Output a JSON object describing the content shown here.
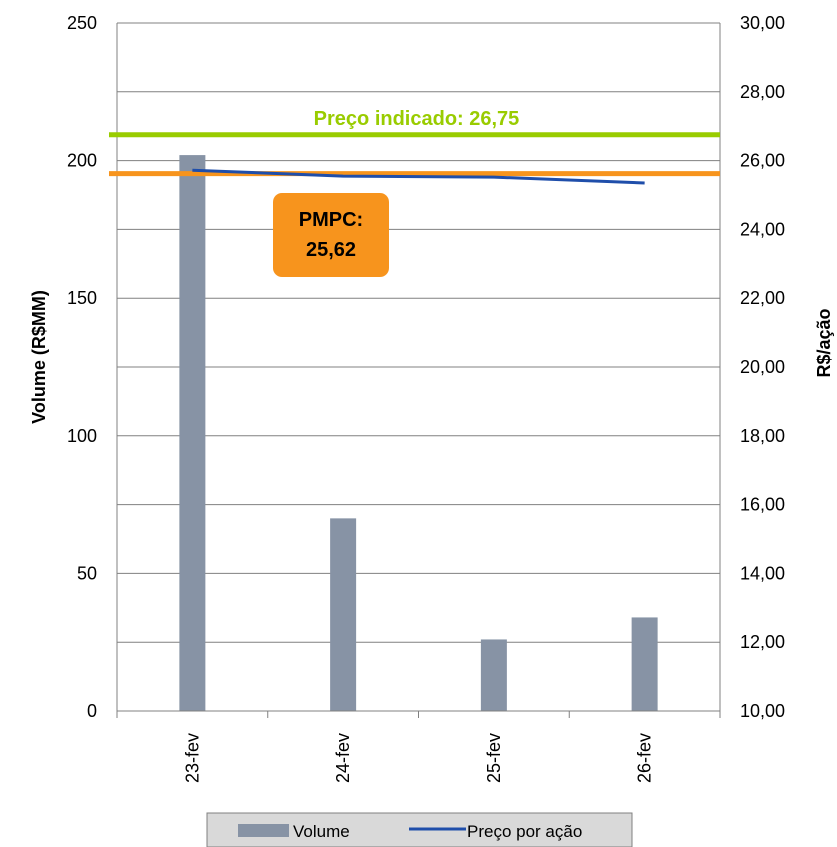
{
  "chart_data": {
    "type": "bar",
    "categories": [
      "23-fev",
      "24-fev",
      "25-fev",
      "26-fev"
    ],
    "series": [
      {
        "name": "Volume",
        "kind": "bar",
        "axis": "left",
        "values": [
          202,
          70,
          26,
          34
        ]
      },
      {
        "name": "Preço por ação",
        "kind": "line",
        "axis": "right",
        "values": [
          25.72,
          25.55,
          25.52,
          25.35
        ]
      }
    ],
    "y_left": {
      "label": "Volume (R$MM)",
      "ylim": [
        0,
        250
      ],
      "ticks": [
        "0",
        "50",
        "100",
        "150",
        "200",
        "250"
      ]
    },
    "y_right": {
      "label": "R$/ação",
      "ylim": [
        10,
        30
      ],
      "ticks": [
        "10,00",
        "12,00",
        "14,00",
        "16,00",
        "18,00",
        "20,00",
        "22,00",
        "24,00",
        "26,00",
        "28,00",
        "30,00"
      ]
    },
    "reference_lines": [
      {
        "label": "Preço indicado: 26,75",
        "value": 26.75,
        "axis": "right",
        "color": "#99CC00"
      },
      {
        "label": "PMPC:\n25,62",
        "value": 25.62,
        "axis": "right",
        "color": "#F7941D"
      }
    ],
    "grid": true,
    "legend": {
      "position": "bottom",
      "entries": [
        "Volume",
        "Preço por ação"
      ]
    },
    "colors": {
      "bar": "#8793A5",
      "line": "#1F4EAA",
      "green": "#99CC00",
      "orange": "#F7941D"
    }
  }
}
